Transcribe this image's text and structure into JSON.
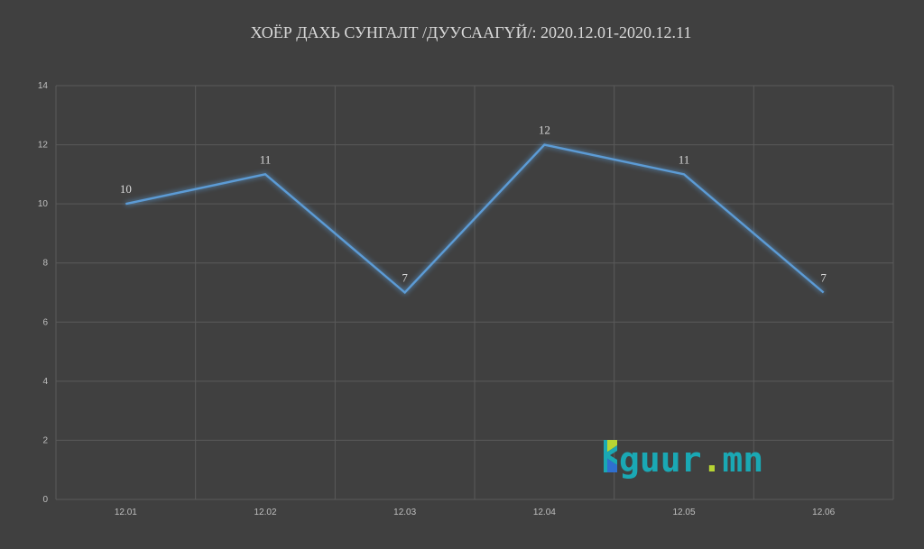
{
  "chart_data": {
    "type": "line",
    "title": "ХОЁР ДАХЬ СУНГАЛТ /ДУУСААГҮЙ/: 2020.12.01-2020.12.11",
    "categories": [
      "12.01",
      "12.02",
      "12.03",
      "12.04",
      "12.05",
      "12.06"
    ],
    "series": [
      {
        "values": [
          10,
          11,
          7,
          12,
          11,
          7
        ]
      }
    ],
    "ylim": [
      0,
      14
    ],
    "yticks": [
      0,
      2,
      4,
      6,
      8,
      10,
      12,
      14
    ],
    "grid": true,
    "legend": "none",
    "line_color": "#5b9bd5",
    "background_color": "#404040"
  },
  "watermark": {
    "letter": "E",
    "text": "guur",
    "dot": ".",
    "suffix": "mn",
    "colors": {
      "primary": "#1aa8b4",
      "accent": "#b7d433",
      "blue": "#2f6fd0"
    }
  }
}
